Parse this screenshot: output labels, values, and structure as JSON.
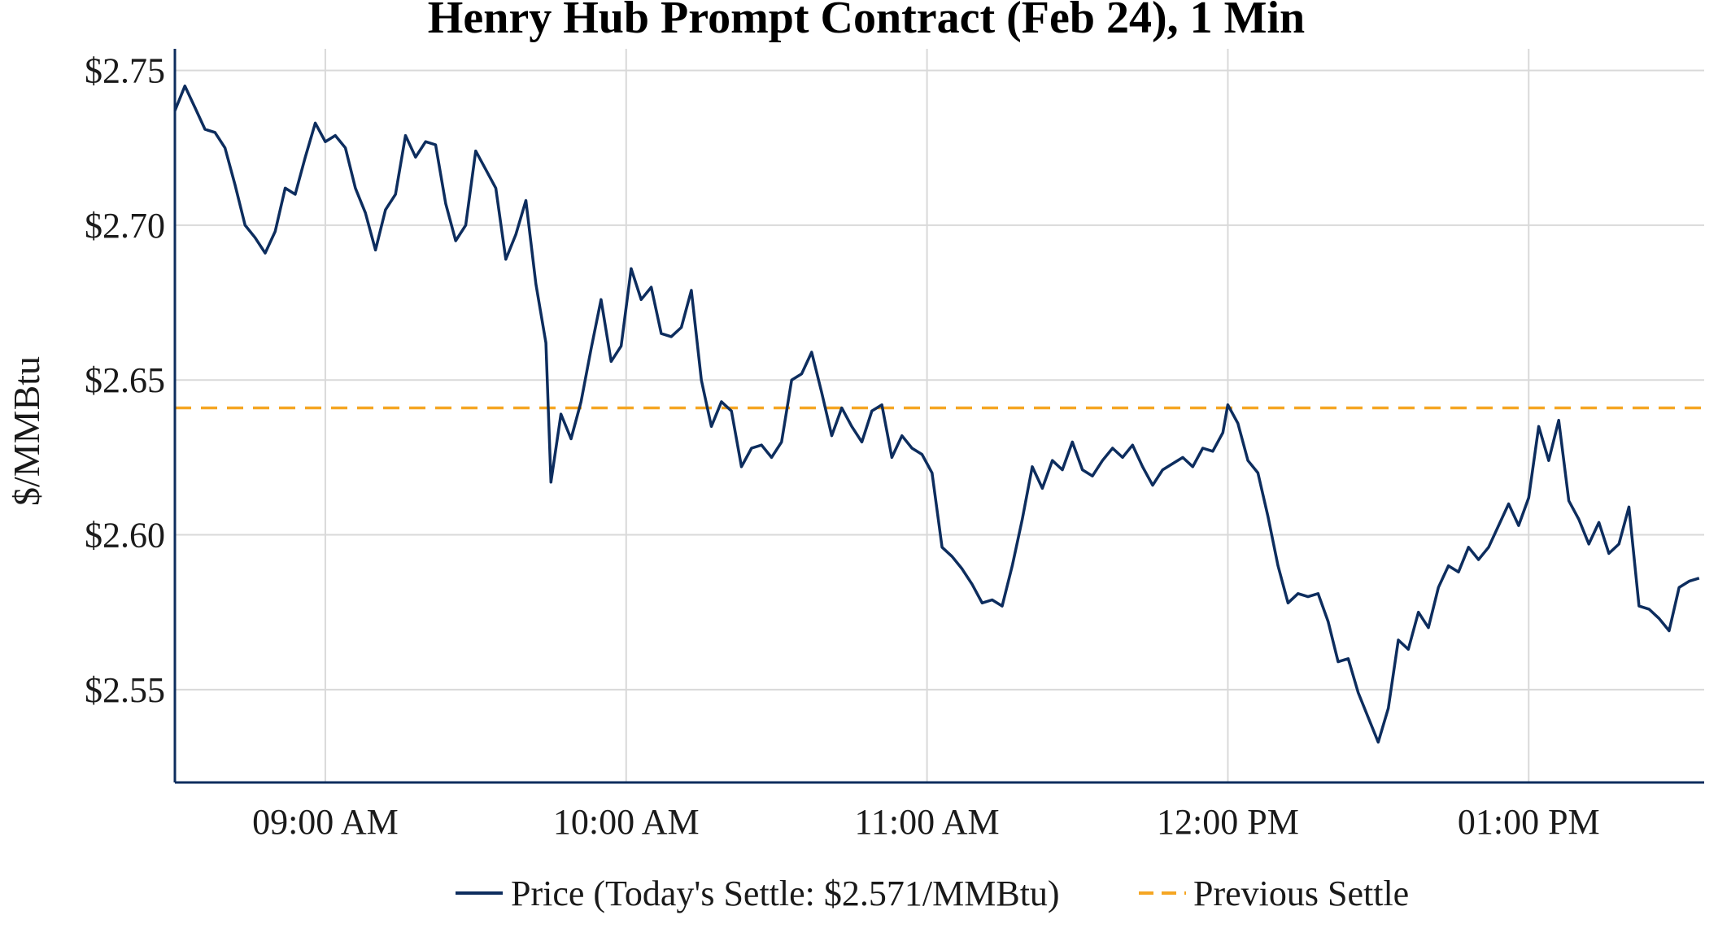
{
  "chart_data": {
    "type": "line",
    "title": "Henry Hub Prompt Contract (Feb 24), 1 Min",
    "xlabel": "",
    "ylabel": "$/MMBtu",
    "x_unit": "time of day",
    "xlim": [
      "08:30",
      "13:35"
    ],
    "ylim": [
      2.52,
      2.757
    ],
    "yticks": [
      2.55,
      2.6,
      2.65,
      2.7,
      2.75
    ],
    "ytick_labels": [
      "$2.55",
      "$2.60",
      "$2.65",
      "$2.70",
      "$2.75"
    ],
    "xticks": [
      "09:00",
      "10:00",
      "11:00",
      "12:00",
      "13:00"
    ],
    "xtick_labels": [
      "09:00 AM",
      "10:00 AM",
      "11:00 AM",
      "12:00 PM",
      "01:00 PM"
    ],
    "grid": true,
    "legend_position": "bottom-center",
    "colors": {
      "price": "#0d2d5e",
      "previous_settle": "#f5a623",
      "grid": "#d9d9d9",
      "axis": "#0d2d5e"
    },
    "series": [
      {
        "name": "Price (Today's Settle: $2.571/MMBtu)",
        "style": "solid",
        "points": [
          [
            "08:30",
            2.737
          ],
          [
            "08:32",
            2.745
          ],
          [
            "08:34",
            2.738
          ],
          [
            "08:36",
            2.731
          ],
          [
            "08:38",
            2.73
          ],
          [
            "08:40",
            2.725
          ],
          [
            "08:42",
            2.713
          ],
          [
            "08:44",
            2.7
          ],
          [
            "08:46",
            2.696
          ],
          [
            "08:48",
            2.691
          ],
          [
            "08:50",
            2.698
          ],
          [
            "08:52",
            2.712
          ],
          [
            "08:54",
            2.71
          ],
          [
            "08:56",
            2.722
          ],
          [
            "08:58",
            2.733
          ],
          [
            "09:00",
            2.727
          ],
          [
            "09:02",
            2.729
          ],
          [
            "09:04",
            2.725
          ],
          [
            "09:06",
            2.712
          ],
          [
            "09:08",
            2.704
          ],
          [
            "09:10",
            2.692
          ],
          [
            "09:12",
            2.705
          ],
          [
            "09:14",
            2.71
          ],
          [
            "09:16",
            2.729
          ],
          [
            "09:18",
            2.722
          ],
          [
            "09:20",
            2.727
          ],
          [
            "09:22",
            2.726
          ],
          [
            "09:24",
            2.707
          ],
          [
            "09:26",
            2.695
          ],
          [
            "09:28",
            2.7
          ],
          [
            "09:30",
            2.724
          ],
          [
            "09:32",
            2.718
          ],
          [
            "09:34",
            2.712
          ],
          [
            "09:36",
            2.689
          ],
          [
            "09:38",
            2.697
          ],
          [
            "09:40",
            2.708
          ],
          [
            "09:42",
            2.681
          ],
          [
            "09:44",
            2.662
          ],
          [
            "09:45",
            2.617
          ],
          [
            "09:47",
            2.639
          ],
          [
            "09:49",
            2.631
          ],
          [
            "09:51",
            2.643
          ],
          [
            "09:53",
            2.66
          ],
          [
            "09:55",
            2.676
          ],
          [
            "09:57",
            2.656
          ],
          [
            "09:59",
            2.661
          ],
          [
            "10:01",
            2.686
          ],
          [
            "10:03",
            2.676
          ],
          [
            "10:05",
            2.68
          ],
          [
            "10:07",
            2.665
          ],
          [
            "10:09",
            2.664
          ],
          [
            "10:11",
            2.667
          ],
          [
            "10:13",
            2.679
          ],
          [
            "10:15",
            2.65
          ],
          [
            "10:17",
            2.635
          ],
          [
            "10:19",
            2.643
          ],
          [
            "10:21",
            2.64
          ],
          [
            "10:23",
            2.622
          ],
          [
            "10:25",
            2.628
          ],
          [
            "10:27",
            2.629
          ],
          [
            "10:29",
            2.625
          ],
          [
            "10:31",
            2.63
          ],
          [
            "10:33",
            2.65
          ],
          [
            "10:35",
            2.652
          ],
          [
            "10:37",
            2.659
          ],
          [
            "10:39",
            2.646
          ],
          [
            "10:41",
            2.632
          ],
          [
            "10:43",
            2.641
          ],
          [
            "10:45",
            2.635
          ],
          [
            "10:47",
            2.63
          ],
          [
            "10:49",
            2.64
          ],
          [
            "10:51",
            2.642
          ],
          [
            "10:53",
            2.625
          ],
          [
            "10:55",
            2.632
          ],
          [
            "10:57",
            2.628
          ],
          [
            "10:59",
            2.626
          ],
          [
            "11:01",
            2.62
          ],
          [
            "11:03",
            2.596
          ],
          [
            "11:05",
            2.593
          ],
          [
            "11:07",
            2.589
          ],
          [
            "11:09",
            2.584
          ],
          [
            "11:11",
            2.578
          ],
          [
            "11:13",
            2.579
          ],
          [
            "11:15",
            2.577
          ],
          [
            "11:17",
            2.59
          ],
          [
            "11:19",
            2.605
          ],
          [
            "11:21",
            2.622
          ],
          [
            "11:23",
            2.615
          ],
          [
            "11:25",
            2.624
          ],
          [
            "11:27",
            2.621
          ],
          [
            "11:29",
            2.63
          ],
          [
            "11:31",
            2.621
          ],
          [
            "11:33",
            2.619
          ],
          [
            "11:35",
            2.624
          ],
          [
            "11:37",
            2.628
          ],
          [
            "11:39",
            2.625
          ],
          [
            "11:41",
            2.629
          ],
          [
            "11:43",
            2.622
          ],
          [
            "11:45",
            2.616
          ],
          [
            "11:47",
            2.621
          ],
          [
            "11:49",
            2.623
          ],
          [
            "11:51",
            2.625
          ],
          [
            "11:53",
            2.622
          ],
          [
            "11:55",
            2.628
          ],
          [
            "11:57",
            2.627
          ],
          [
            "11:59",
            2.633
          ],
          [
            "12:00",
            2.642
          ],
          [
            "12:02",
            2.636
          ],
          [
            "12:04",
            2.624
          ],
          [
            "12:06",
            2.62
          ],
          [
            "12:08",
            2.606
          ],
          [
            "12:10",
            2.59
          ],
          [
            "12:12",
            2.578
          ],
          [
            "12:14",
            2.581
          ],
          [
            "12:16",
            2.58
          ],
          [
            "12:18",
            2.581
          ],
          [
            "12:20",
            2.572
          ],
          [
            "12:22",
            2.559
          ],
          [
            "12:24",
            2.56
          ],
          [
            "12:26",
            2.549
          ],
          [
            "12:28",
            2.541
          ],
          [
            "12:30",
            2.533
          ],
          [
            "12:32",
            2.544
          ],
          [
            "12:34",
            2.566
          ],
          [
            "12:36",
            2.563
          ],
          [
            "12:38",
            2.575
          ],
          [
            "12:40",
            2.57
          ],
          [
            "12:42",
            2.583
          ],
          [
            "12:44",
            2.59
          ],
          [
            "12:46",
            2.588
          ],
          [
            "12:48",
            2.596
          ],
          [
            "12:50",
            2.592
          ],
          [
            "12:52",
            2.596
          ],
          [
            "12:54",
            2.603
          ],
          [
            "12:56",
            2.61
          ],
          [
            "12:58",
            2.603
          ],
          [
            "13:00",
            2.612
          ],
          [
            "13:02",
            2.635
          ],
          [
            "13:04",
            2.624
          ],
          [
            "13:06",
            2.637
          ],
          [
            "13:08",
            2.611
          ],
          [
            "13:10",
            2.605
          ],
          [
            "13:12",
            2.597
          ],
          [
            "13:14",
            2.604
          ],
          [
            "13:16",
            2.594
          ],
          [
            "13:18",
            2.597
          ],
          [
            "13:20",
            2.609
          ],
          [
            "13:22",
            2.577
          ],
          [
            "13:24",
            2.576
          ],
          [
            "13:26",
            2.573
          ],
          [
            "13:28",
            2.569
          ],
          [
            "13:30",
            2.583
          ],
          [
            "13:32",
            2.585
          ],
          [
            "13:34",
            2.586
          ]
        ]
      },
      {
        "name": "Previous Settle",
        "style": "dashed",
        "value": 2.641
      }
    ]
  }
}
